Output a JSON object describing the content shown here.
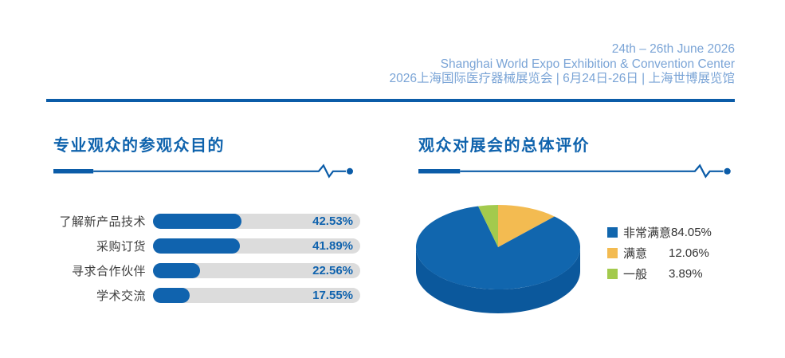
{
  "header": {
    "line1": "24th – 26th June 2026",
    "line2": "Shanghai World Expo Exhibition & Convention Center",
    "line3": "2026上海国际医疗器械展览会 | 6月24日-26日 | 上海世博展览馆"
  },
  "colors": {
    "brand_blue": "#0b5ca8",
    "header_blue": "#7aa4d6",
    "title_blue": "#0f63ad",
    "bar_blue": "#1063ae",
    "bar_track_gray": "#dcdcdc",
    "label_dark": "#3d3d3d",
    "pie_blue_side": "#0b589c"
  },
  "sections": {
    "left": {
      "title": "专业观众的参观众目的"
    },
    "right": {
      "title": "观众对展会的总体评价"
    }
  },
  "chart_data": [
    {
      "type": "bar",
      "orientation": "horizontal",
      "title": "专业观众的参观众目的",
      "categories": [
        "了解新产品技术",
        "采购订货",
        "寻求合作伙伴",
        "学术交流"
      ],
      "values": [
        42.53,
        41.89,
        22.56,
        17.55
      ],
      "value_labels": [
        "42.53%",
        "41.89%",
        "22.56%",
        "17.55%"
      ],
      "xlim": [
        0,
        100
      ],
      "grid": false,
      "bar_color": "#1063ae",
      "track_color": "#dcdcdc",
      "bar_style": "rounded pill fill on gray rounded track, value label inside right end"
    },
    {
      "type": "pie",
      "style": "3d",
      "title": "观众对展会的总体评价",
      "labels": [
        "非常满意",
        "满意",
        "一般"
      ],
      "values": [
        84.05,
        12.06,
        3.89
      ],
      "value_labels": [
        "84.05%",
        "12.06%",
        "3.89%"
      ],
      "colors": [
        "#1166ae",
        "#f3bb51",
        "#a3ca4d"
      ],
      "side_color": "#0b589c",
      "legend_position": "right",
      "start_angle_deg": 0,
      "clockwise_draw_order": [
        1,
        0,
        2
      ]
    }
  ]
}
